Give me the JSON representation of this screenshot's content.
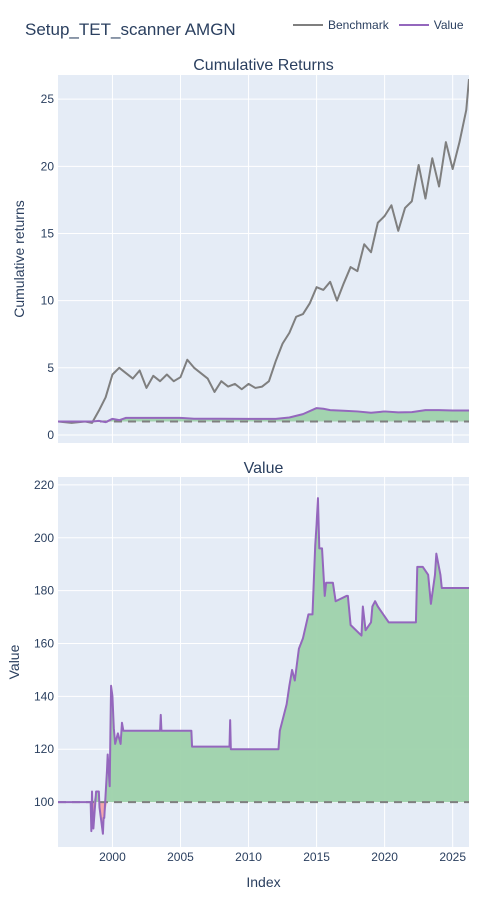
{
  "title": "Setup_TET_scanner AMGN",
  "legend": [
    {
      "name": "Benchmark",
      "color": "#7f7f7f"
    },
    {
      "name": "Value",
      "color": "#9467bd"
    }
  ],
  "colors": {
    "plot_bg": "#e5ecf6",
    "grid": "#ffffff",
    "text": "#2a3f5f",
    "fill_positive": "#9ed2ab",
    "fill_negative": "#f4a3a8",
    "baseline": "#7f7f7f"
  },
  "chart_data": [
    {
      "type": "line",
      "title": "Cumulative Returns",
      "ylabel": "Cumulative returns",
      "xlabel": "",
      "xlim": [
        1996.0,
        2026.2
      ],
      "ylim": [
        -0.6,
        26.8
      ],
      "yticks": [
        0,
        5,
        10,
        15,
        20,
        25
      ],
      "xticks": [
        2000,
        2005,
        2010,
        2015,
        2020,
        2025
      ],
      "baseline": 1,
      "series": [
        {
          "name": "Benchmark",
          "x": [
            1996.0,
            1997.0,
            1998.0,
            1998.5,
            1999.0,
            1999.5,
            2000.0,
            2000.5,
            2001.0,
            2001.5,
            2002.0,
            2002.5,
            2003.0,
            2003.5,
            2004.0,
            2004.5,
            2005.0,
            2005.5,
            2006.0,
            2006.5,
            2007.0,
            2007.5,
            2008.0,
            2008.5,
            2009.0,
            2009.5,
            2010.0,
            2010.5,
            2011.0,
            2011.5,
            2012.0,
            2012.5,
            2013.0,
            2013.5,
            2014.0,
            2014.5,
            2015.0,
            2015.5,
            2016.0,
            2016.5,
            2017.0,
            2017.5,
            2018.0,
            2018.5,
            2019.0,
            2019.5,
            2020.0,
            2020.5,
            2021.0,
            2021.5,
            2022.0,
            2022.5,
            2023.0,
            2023.5,
            2024.0,
            2024.5,
            2025.0,
            2025.5,
            2026.0,
            2026.2
          ],
          "values": [
            1.0,
            0.9,
            1.0,
            0.9,
            1.8,
            2.8,
            4.5,
            5.0,
            4.6,
            4.2,
            4.8,
            3.5,
            4.4,
            4.0,
            4.5,
            4.0,
            4.3,
            5.6,
            5.0,
            4.6,
            4.2,
            3.2,
            4.0,
            3.6,
            3.8,
            3.4,
            3.8,
            3.5,
            3.6,
            4.0,
            5.5,
            6.8,
            7.6,
            8.8,
            9.0,
            9.8,
            11.0,
            10.8,
            11.4,
            10.0,
            11.3,
            12.5,
            12.2,
            14.2,
            13.6,
            15.8,
            16.3,
            17.1,
            15.2,
            16.9,
            17.4,
            20.1,
            17.6,
            20.6,
            18.5,
            21.8,
            19.8,
            21.8,
            24.2,
            26.5
          ]
        },
        {
          "name": "Value",
          "x": [
            1996.0,
            1997.0,
            1998.0,
            1998.5,
            1999.0,
            1999.5,
            2000.0,
            2000.5,
            2001.0,
            2005.0,
            2006.0,
            2008.0,
            2010.0,
            2012.0,
            2013.0,
            2014.0,
            2015.0,
            2015.5,
            2016.0,
            2017.0,
            2018.0,
            2019.0,
            2020.0,
            2021.0,
            2022.0,
            2023.0,
            2024.0,
            2025.0,
            2026.2
          ],
          "values": [
            1.0,
            1.0,
            1.0,
            1.0,
            1.05,
            0.95,
            1.2,
            1.1,
            1.27,
            1.27,
            1.21,
            1.21,
            1.2,
            1.2,
            1.3,
            1.55,
            2.0,
            1.95,
            1.85,
            1.8,
            1.75,
            1.65,
            1.75,
            1.68,
            1.7,
            1.85,
            1.85,
            1.82,
            1.82
          ]
        }
      ]
    },
    {
      "type": "area",
      "title": "Value",
      "ylabel": "Value",
      "xlabel": "Index",
      "xlim": [
        1996.0,
        2026.2
      ],
      "ylim": [
        83,
        223
      ],
      "yticks": [
        100,
        120,
        140,
        160,
        180,
        200,
        220
      ],
      "xticks": [
        2000,
        2005,
        2010,
        2015,
        2020,
        2025
      ],
      "baseline": 100,
      "series": [
        {
          "name": "Value",
          "x": [
            1996.0,
            1998.4,
            1998.45,
            1998.5,
            1998.55,
            1998.6,
            1998.8,
            1999.0,
            1999.05,
            1999.3,
            1999.35,
            1999.4,
            1999.6,
            1999.65,
            1999.8,
            1999.85,
            1999.9,
            2000.0,
            2000.1,
            2000.2,
            2000.4,
            2000.6,
            2000.7,
            2000.8,
            2001.0,
            2003.5,
            2003.55,
            2003.6,
            2005.8,
            2005.85,
            2008.6,
            2008.65,
            2008.7,
            2008.75,
            2008.8,
            2012.2,
            2012.3,
            2012.6,
            2012.8,
            2013.0,
            2013.2,
            2013.4,
            2013.7,
            2014.0,
            2014.4,
            2014.7,
            2014.9,
            2015.0,
            2015.1,
            2015.2,
            2015.4,
            2015.6,
            2015.7,
            2016.2,
            2016.4,
            2017.2,
            2017.3,
            2017.5,
            2018.3,
            2018.4,
            2018.6,
            2019.0,
            2019.1,
            2019.3,
            2019.5,
            2020.3,
            2020.4,
            2022.3,
            2022.4,
            2022.8,
            2023.2,
            2023.4,
            2023.7,
            2023.8,
            2024.1,
            2024.2,
            2024.5,
            2026.2
          ],
          "values": [
            100,
            100,
            89,
            104,
            94,
            90,
            104,
            104,
            98,
            88,
            94,
            94,
            112,
            118,
            106,
            126,
            144,
            140,
            128,
            122,
            126,
            122,
            130,
            127,
            127,
            127,
            133,
            127,
            127,
            121,
            121,
            131,
            120,
            120,
            120,
            120,
            127,
            133,
            137,
            144,
            150,
            146,
            158,
            162,
            171,
            171,
            197,
            205,
            215,
            196,
            196,
            178,
            183,
            183,
            176,
            178,
            178,
            167,
            163,
            174,
            165,
            168,
            174,
            176,
            174,
            168,
            168,
            168,
            189,
            189,
            186,
            175,
            186,
            194,
            186,
            181,
            181,
            181
          ]
        }
      ]
    }
  ]
}
